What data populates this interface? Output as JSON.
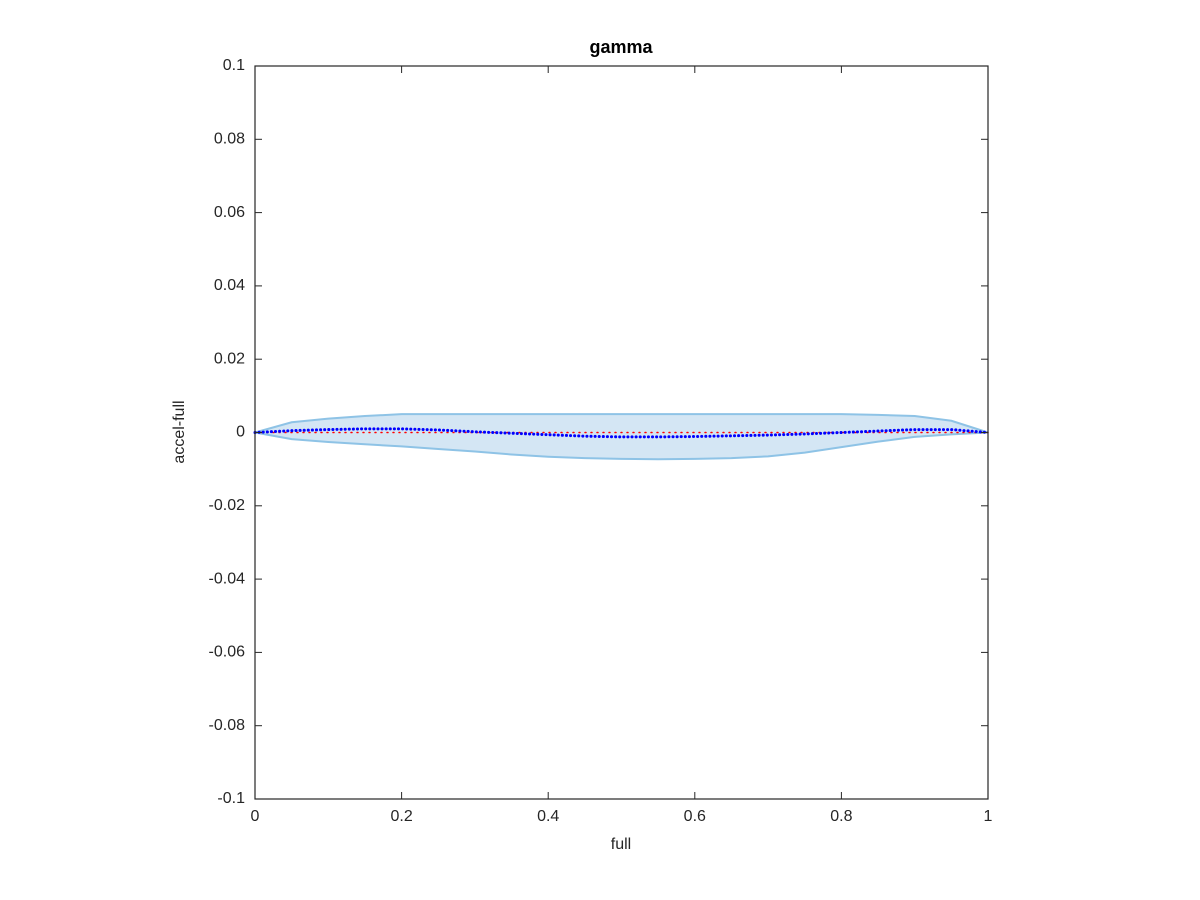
{
  "chart_data": {
    "type": "line",
    "title": "gamma",
    "x_label": "full",
    "y_label": "accel-full",
    "x": [
      0,
      0.05,
      0.1,
      0.15,
      0.2,
      0.25,
      0.3,
      0.35,
      0.4,
      0.45,
      0.5,
      0.55,
      0.6,
      0.65,
      0.7,
      0.75,
      0.8,
      0.85,
      0.9,
      0.95,
      1
    ],
    "series": [
      {
        "color": "#0000ff",
        "style": "dotted",
        "values": [
          0,
          0.0005,
          0.0008,
          0.001,
          0.001,
          0.0007,
          0.0002,
          -0.0002,
          -0.0006,
          -0.001,
          -0.0012,
          -0.0012,
          -0.0011,
          -0.0009,
          -0.0007,
          -0.0004,
          0,
          0.0004,
          0.0008,
          0.0008,
          0
        ]
      },
      {
        "color": "#ff0000",
        "style": "dotted",
        "values": [
          0,
          0,
          0,
          0,
          0,
          0,
          0,
          0,
          0,
          0,
          0,
          0,
          0,
          0,
          0,
          0,
          0,
          0,
          0,
          0,
          0
        ]
      }
    ],
    "band": {
      "fill": "#d4e6f4",
      "edge": "#8ec3e6",
      "upper": [
        0,
        0.0028,
        0.0038,
        0.0045,
        0.005,
        0.005,
        0.005,
        0.005,
        0.005,
        0.005,
        0.005,
        0.005,
        0.005,
        0.005,
        0.005,
        0.005,
        0.005,
        0.0048,
        0.0045,
        0.0032,
        0
      ],
      "lower": [
        0,
        -0.0018,
        -0.0026,
        -0.0032,
        -0.0038,
        -0.0045,
        -0.0052,
        -0.006,
        -0.0066,
        -0.007,
        -0.0072,
        -0.0073,
        -0.0072,
        -0.007,
        -0.0065,
        -0.0055,
        -0.004,
        -0.0025,
        -0.0012,
        -0.0005,
        0
      ]
    },
    "xlim": [
      0,
      1
    ],
    "xticks": [
      0,
      0.2,
      0.4,
      0.6,
      0.8,
      1
    ],
    "ylim": [
      -0.1,
      0.1
    ],
    "yticks": [
      -0.1,
      -0.08,
      -0.06,
      -0.04,
      -0.02,
      0,
      0.02,
      0.04,
      0.06,
      0.08,
      0.1
    ],
    "grid": false
  }
}
